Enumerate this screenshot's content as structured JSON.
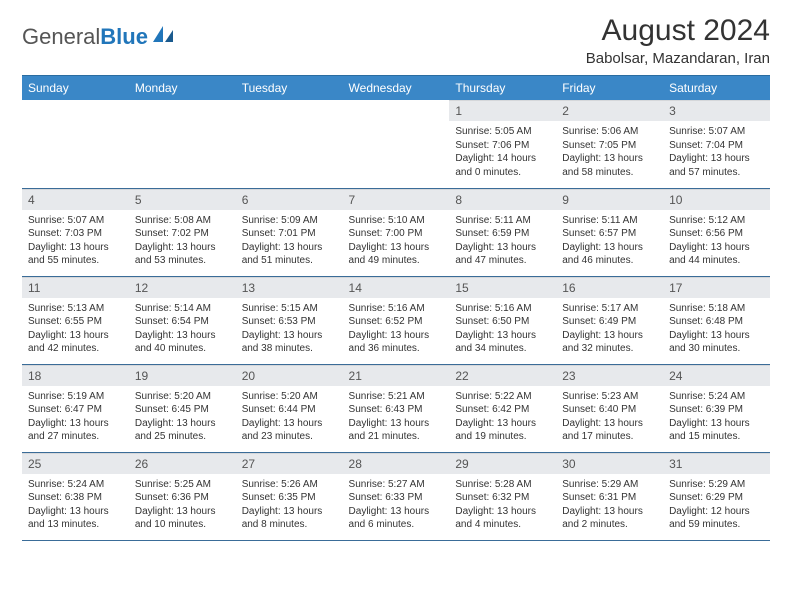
{
  "logo": {
    "text1": "General",
    "text2": "Blue"
  },
  "title": "August 2024",
  "location": "Babolsar, Mazandaran, Iran",
  "colors": {
    "header_bg": "#3a87c7",
    "header_text": "#ffffff",
    "daynum_bg": "#e7e9ec",
    "row_border": "#3a6c98",
    "logo_blue": "#2176ba",
    "body_text": "#333333"
  },
  "day_headers": [
    "Sunday",
    "Monday",
    "Tuesday",
    "Wednesday",
    "Thursday",
    "Friday",
    "Saturday"
  ],
  "weeks": [
    [
      {
        "empty": true
      },
      {
        "empty": true
      },
      {
        "empty": true
      },
      {
        "empty": true
      },
      {
        "n": "1",
        "sunrise": "5:05 AM",
        "sunset": "7:06 PM",
        "daylight": "14 hours and 0 minutes."
      },
      {
        "n": "2",
        "sunrise": "5:06 AM",
        "sunset": "7:05 PM",
        "daylight": "13 hours and 58 minutes."
      },
      {
        "n": "3",
        "sunrise": "5:07 AM",
        "sunset": "7:04 PM",
        "daylight": "13 hours and 57 minutes."
      }
    ],
    [
      {
        "n": "4",
        "sunrise": "5:07 AM",
        "sunset": "7:03 PM",
        "daylight": "13 hours and 55 minutes."
      },
      {
        "n": "5",
        "sunrise": "5:08 AM",
        "sunset": "7:02 PM",
        "daylight": "13 hours and 53 minutes."
      },
      {
        "n": "6",
        "sunrise": "5:09 AM",
        "sunset": "7:01 PM",
        "daylight": "13 hours and 51 minutes."
      },
      {
        "n": "7",
        "sunrise": "5:10 AM",
        "sunset": "7:00 PM",
        "daylight": "13 hours and 49 minutes."
      },
      {
        "n": "8",
        "sunrise": "5:11 AM",
        "sunset": "6:59 PM",
        "daylight": "13 hours and 47 minutes."
      },
      {
        "n": "9",
        "sunrise": "5:11 AM",
        "sunset": "6:57 PM",
        "daylight": "13 hours and 46 minutes."
      },
      {
        "n": "10",
        "sunrise": "5:12 AM",
        "sunset": "6:56 PM",
        "daylight": "13 hours and 44 minutes."
      }
    ],
    [
      {
        "n": "11",
        "sunrise": "5:13 AM",
        "sunset": "6:55 PM",
        "daylight": "13 hours and 42 minutes."
      },
      {
        "n": "12",
        "sunrise": "5:14 AM",
        "sunset": "6:54 PM",
        "daylight": "13 hours and 40 minutes."
      },
      {
        "n": "13",
        "sunrise": "5:15 AM",
        "sunset": "6:53 PM",
        "daylight": "13 hours and 38 minutes."
      },
      {
        "n": "14",
        "sunrise": "5:16 AM",
        "sunset": "6:52 PM",
        "daylight": "13 hours and 36 minutes."
      },
      {
        "n": "15",
        "sunrise": "5:16 AM",
        "sunset": "6:50 PM",
        "daylight": "13 hours and 34 minutes."
      },
      {
        "n": "16",
        "sunrise": "5:17 AM",
        "sunset": "6:49 PM",
        "daylight": "13 hours and 32 minutes."
      },
      {
        "n": "17",
        "sunrise": "5:18 AM",
        "sunset": "6:48 PM",
        "daylight": "13 hours and 30 minutes."
      }
    ],
    [
      {
        "n": "18",
        "sunrise": "5:19 AM",
        "sunset": "6:47 PM",
        "daylight": "13 hours and 27 minutes."
      },
      {
        "n": "19",
        "sunrise": "5:20 AM",
        "sunset": "6:45 PM",
        "daylight": "13 hours and 25 minutes."
      },
      {
        "n": "20",
        "sunrise": "5:20 AM",
        "sunset": "6:44 PM",
        "daylight": "13 hours and 23 minutes."
      },
      {
        "n": "21",
        "sunrise": "5:21 AM",
        "sunset": "6:43 PM",
        "daylight": "13 hours and 21 minutes."
      },
      {
        "n": "22",
        "sunrise": "5:22 AM",
        "sunset": "6:42 PM",
        "daylight": "13 hours and 19 minutes."
      },
      {
        "n": "23",
        "sunrise": "5:23 AM",
        "sunset": "6:40 PM",
        "daylight": "13 hours and 17 minutes."
      },
      {
        "n": "24",
        "sunrise": "5:24 AM",
        "sunset": "6:39 PM",
        "daylight": "13 hours and 15 minutes."
      }
    ],
    [
      {
        "n": "25",
        "sunrise": "5:24 AM",
        "sunset": "6:38 PM",
        "daylight": "13 hours and 13 minutes."
      },
      {
        "n": "26",
        "sunrise": "5:25 AM",
        "sunset": "6:36 PM",
        "daylight": "13 hours and 10 minutes."
      },
      {
        "n": "27",
        "sunrise": "5:26 AM",
        "sunset": "6:35 PM",
        "daylight": "13 hours and 8 minutes."
      },
      {
        "n": "28",
        "sunrise": "5:27 AM",
        "sunset": "6:33 PM",
        "daylight": "13 hours and 6 minutes."
      },
      {
        "n": "29",
        "sunrise": "5:28 AM",
        "sunset": "6:32 PM",
        "daylight": "13 hours and 4 minutes."
      },
      {
        "n": "30",
        "sunrise": "5:29 AM",
        "sunset": "6:31 PM",
        "daylight": "13 hours and 2 minutes."
      },
      {
        "n": "31",
        "sunrise": "5:29 AM",
        "sunset": "6:29 PM",
        "daylight": "12 hours and 59 minutes."
      }
    ]
  ],
  "labels": {
    "sunrise": "Sunrise:",
    "sunset": "Sunset:",
    "daylight": "Daylight:"
  }
}
